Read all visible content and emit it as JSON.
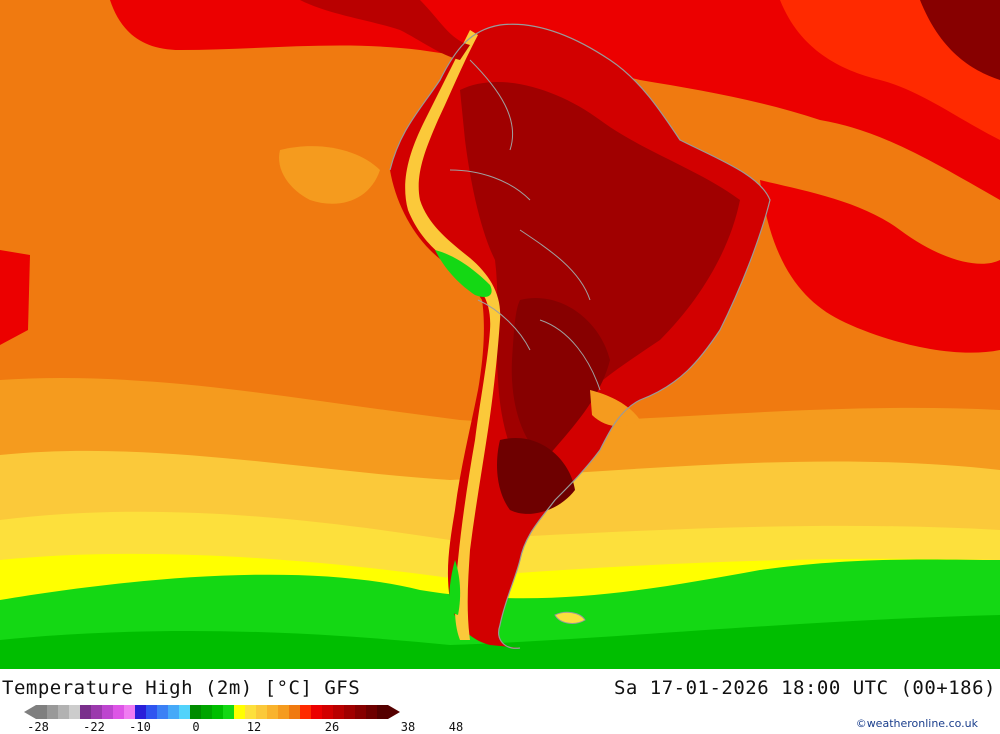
{
  "map": {
    "title": "Temperature High (2m) [°C] GFS",
    "valid_time": "Sa 17-01-2026 18:00 UTC (00+186)",
    "region": "South America",
    "credit": "©weatheronline.co.uk"
  },
  "legend": {
    "colors": [
      "#7f7f7f",
      "#999999",
      "#b2b2b2",
      "#cccccc",
      "#7a2f8c",
      "#9b39ad",
      "#bd45cf",
      "#dd55e6",
      "#f07cf2",
      "#2a1fd9",
      "#2f55f0",
      "#3b80f5",
      "#46a9f8",
      "#52d3fb",
      "#008c00",
      "#00a500",
      "#00be00",
      "#14d814",
      "#ffff00",
      "#fde03c",
      "#fbc93a",
      "#f9b32c",
      "#f59b1e",
      "#f07a10",
      "#ff2a00",
      "#ec0000",
      "#d20000",
      "#b90000",
      "#a00000",
      "#870000",
      "#6e0000",
      "#550000"
    ],
    "ticks": [
      {
        "label": "-28",
        "value": -28
      },
      {
        "label": "-22",
        "value": -22
      },
      {
        "label": "-10",
        "value": -10
      },
      {
        "label": "0",
        "value": 0
      },
      {
        "label": "12",
        "value": 12
      },
      {
        "label": "26",
        "value": 26
      },
      {
        "label": "38",
        "value": 38
      },
      {
        "label": "48",
        "value": 48
      }
    ]
  }
}
